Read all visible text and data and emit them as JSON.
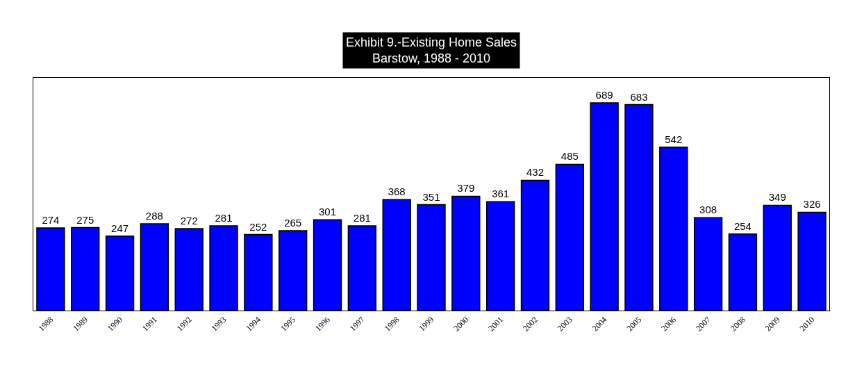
{
  "chart_data": {
    "type": "bar",
    "title": "Exhibit 9.-Existing Home Sales\nBarstow, 1988 - 2010",
    "categories": [
      "1988",
      "1989",
      "1990",
      "1991",
      "1992",
      "1993",
      "1994",
      "1995",
      "1996",
      "1997",
      "1998",
      "1999",
      "2000",
      "2001",
      "2002",
      "2003",
      "2004",
      "2005",
      "2006",
      "2007",
      "2008",
      "2009",
      "2010"
    ],
    "values": [
      274,
      275,
      247,
      288,
      272,
      281,
      252,
      265,
      301,
      281,
      368,
      351,
      379,
      361,
      432,
      485,
      689,
      683,
      542,
      308,
      254,
      349,
      326
    ],
    "color": "#0000ff",
    "data_labels": true
  }
}
